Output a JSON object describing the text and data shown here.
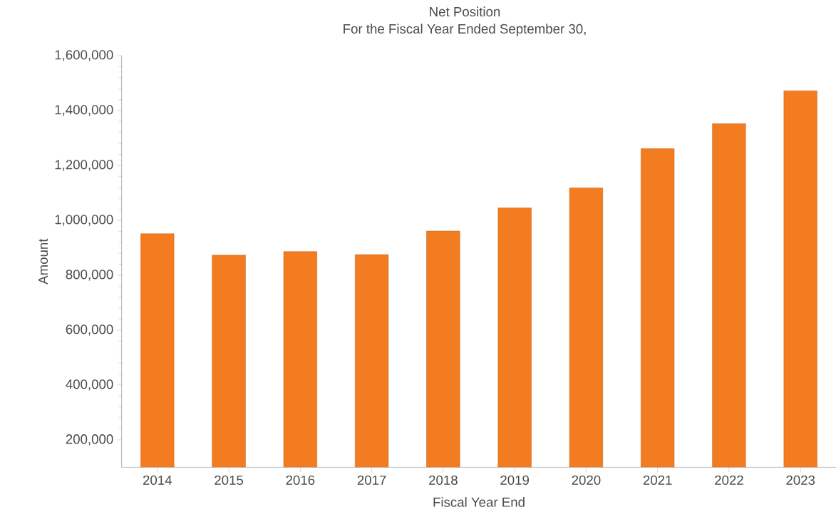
{
  "chart_data": {
    "type": "bar",
    "title": "Net Position",
    "subtitle": "For the Fiscal Year Ended September 30,",
    "xlabel": "Fiscal Year End",
    "ylabel": "Amount",
    "categories": [
      "2014",
      "2015",
      "2016",
      "2017",
      "2018",
      "2019",
      "2020",
      "2021",
      "2022",
      "2023"
    ],
    "values": [
      951000,
      873000,
      886000,
      875000,
      961000,
      1045000,
      1118000,
      1261000,
      1352000,
      1472000
    ],
    "color": "#f47c20",
    "ylim": [
      100000,
      1600000
    ],
    "yticks": [
      {
        "value": 200000,
        "label": "200,000"
      },
      {
        "value": 400000,
        "label": "400,000"
      },
      {
        "value": 600000,
        "label": "600,000"
      },
      {
        "value": 800000,
        "label": "800,000"
      },
      {
        "value": 1000000,
        "label": "1,000,000"
      },
      {
        "value": 1200000,
        "label": "1,200,000"
      },
      {
        "value": 1400000,
        "label": "1,400,000"
      },
      {
        "value": 1600000,
        "label": "1,600,000"
      }
    ]
  }
}
